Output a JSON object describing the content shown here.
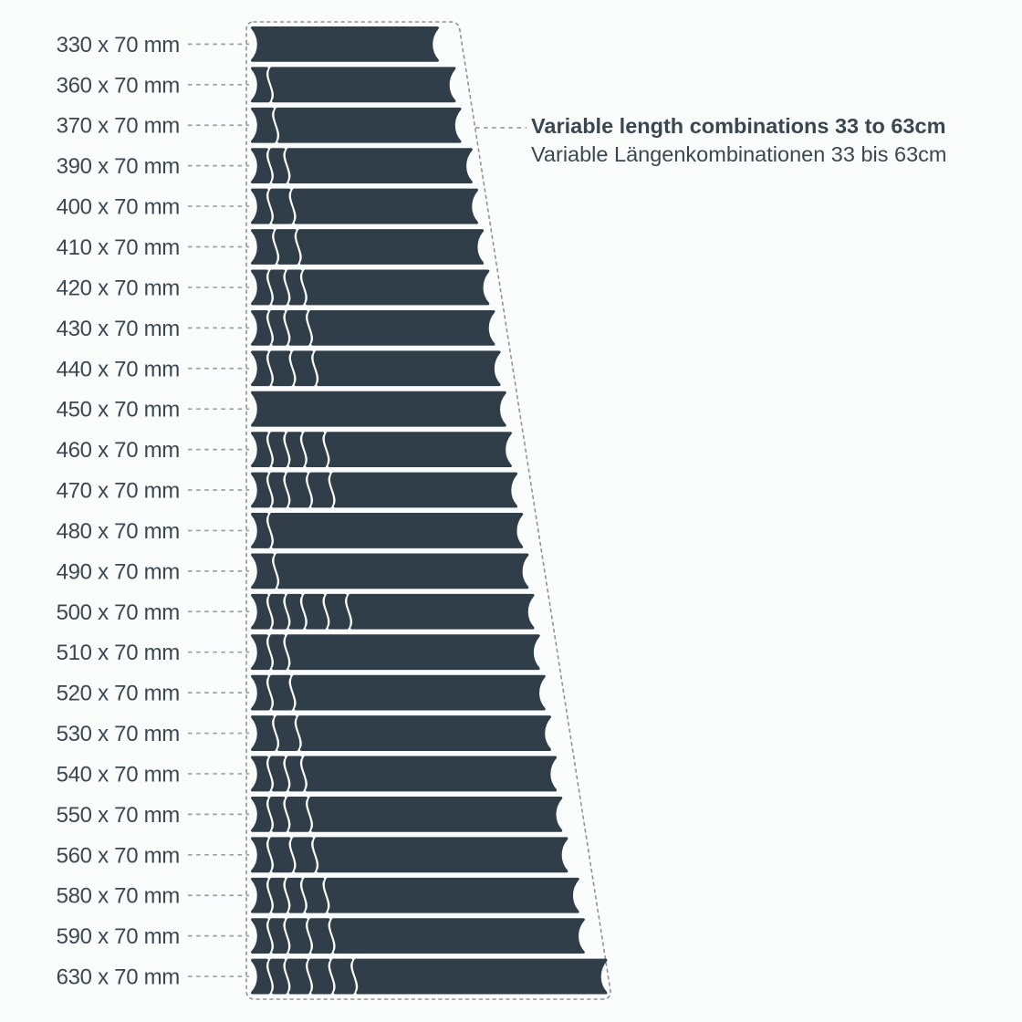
{
  "diagram": {
    "annotation": {
      "line1": "Variable length combinations 33 to 63cm",
      "line2": "Variable Längenkombinationen 33 bis 63cm"
    },
    "colors": {
      "bar": "#2f3e48",
      "text": "#3b4750",
      "outline": "#8d9499",
      "leader": "#9aa0a5",
      "background": "#fbfcfc"
    },
    "rows": [
      {
        "label": "330 x 70 mm",
        "total_mm": 330,
        "width_mm": 70,
        "pieces_mm": [
          330
        ]
      },
      {
        "label": "360 x 70 mm",
        "total_mm": 360,
        "width_mm": 70,
        "pieces_mm": [
          30,
          330
        ]
      },
      {
        "label": "370 x 70 mm",
        "total_mm": 370,
        "width_mm": 70,
        "pieces_mm": [
          40,
          330
        ]
      },
      {
        "label": "390 x 70 mm",
        "total_mm": 390,
        "width_mm": 70,
        "pieces_mm": [
          30,
          30,
          330
        ]
      },
      {
        "label": "400 x 70 mm",
        "total_mm": 400,
        "width_mm": 70,
        "pieces_mm": [
          30,
          40,
          330
        ]
      },
      {
        "label": "410 x 70 mm",
        "total_mm": 410,
        "width_mm": 70,
        "pieces_mm": [
          40,
          40,
          330
        ]
      },
      {
        "label": "420 x 70 mm",
        "total_mm": 420,
        "width_mm": 70,
        "pieces_mm": [
          30,
          30,
          30,
          330
        ]
      },
      {
        "label": "430 x 70 mm",
        "total_mm": 430,
        "width_mm": 70,
        "pieces_mm": [
          30,
          30,
          40,
          330
        ]
      },
      {
        "label": "440 x 70 mm",
        "total_mm": 440,
        "width_mm": 70,
        "pieces_mm": [
          30,
          40,
          40,
          330
        ]
      },
      {
        "label": "450 x 70 mm",
        "total_mm": 450,
        "width_mm": 70,
        "pieces_mm": [
          450
        ]
      },
      {
        "label": "460 x 70 mm",
        "total_mm": 460,
        "width_mm": 70,
        "pieces_mm": [
          30,
          30,
          30,
          40,
          330
        ]
      },
      {
        "label": "470 x 70 mm",
        "total_mm": 470,
        "width_mm": 70,
        "pieces_mm": [
          30,
          30,
          40,
          40,
          330
        ]
      },
      {
        "label": "480 x 70 mm",
        "total_mm": 480,
        "width_mm": 70,
        "pieces_mm": [
          30,
          450
        ]
      },
      {
        "label": "490 x 70 mm",
        "total_mm": 490,
        "width_mm": 70,
        "pieces_mm": [
          40,
          450
        ]
      },
      {
        "label": "500 x 70 mm",
        "total_mm": 500,
        "width_mm": 70,
        "pieces_mm": [
          30,
          30,
          30,
          40,
          40,
          330
        ]
      },
      {
        "label": "510 x 70 mm",
        "total_mm": 510,
        "width_mm": 70,
        "pieces_mm": [
          30,
          30,
          450
        ]
      },
      {
        "label": "520 x 70 mm",
        "total_mm": 520,
        "width_mm": 70,
        "pieces_mm": [
          30,
          40,
          450
        ]
      },
      {
        "label": "530 x 70 mm",
        "total_mm": 530,
        "width_mm": 70,
        "pieces_mm": [
          40,
          40,
          450
        ]
      },
      {
        "label": "540 x 70 mm",
        "total_mm": 540,
        "width_mm": 70,
        "pieces_mm": [
          30,
          30,
          30,
          450
        ]
      },
      {
        "label": "550 x 70 mm",
        "total_mm": 550,
        "width_mm": 70,
        "pieces_mm": [
          30,
          30,
          40,
          450
        ]
      },
      {
        "label": "560 x 70 mm",
        "total_mm": 560,
        "width_mm": 70,
        "pieces_mm": [
          30,
          40,
          40,
          450
        ]
      },
      {
        "label": "580 x 70 mm",
        "total_mm": 580,
        "width_mm": 70,
        "pieces_mm": [
          30,
          30,
          30,
          40,
          450
        ]
      },
      {
        "label": "590 x 70 mm",
        "total_mm": 590,
        "width_mm": 70,
        "pieces_mm": [
          30,
          30,
          40,
          40,
          450
        ]
      },
      {
        "label": "630 x 70 mm",
        "total_mm": 630,
        "width_mm": 70,
        "pieces_mm": [
          30,
          30,
          40,
          40,
          40,
          450
        ]
      }
    ]
  }
}
